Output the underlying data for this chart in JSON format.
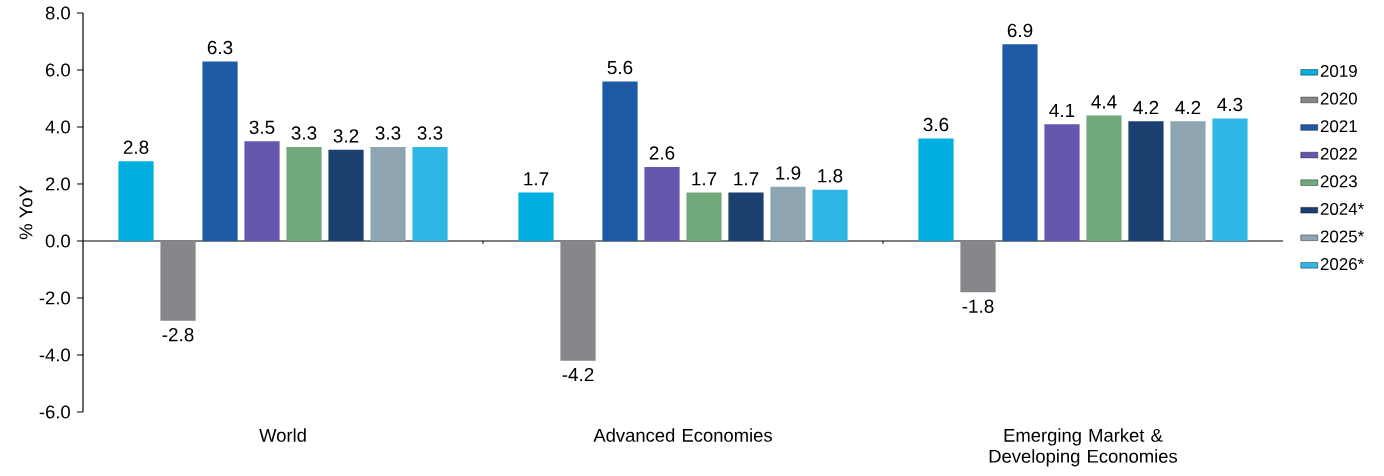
{
  "chart_data": {
    "type": "bar",
    "ylabel": "% YoY",
    "categories": [
      "World",
      "Advanced Economies",
      "Emerging Market & Developing Economies"
    ],
    "series": [
      {
        "name": "2019",
        "color": "#00aee0",
        "values": [
          2.8,
          1.7,
          3.6
        ]
      },
      {
        "name": "2020",
        "color": "#85878a",
        "values": [
          -2.8,
          -4.2,
          -1.8
        ]
      },
      {
        "name": "2021",
        "color": "#1f5aa6",
        "values": [
          6.3,
          5.6,
          6.9
        ]
      },
      {
        "name": "2022",
        "color": "#6557ae",
        "values": [
          3.5,
          2.6,
          4.1
        ]
      },
      {
        "name": "2023",
        "color": "#72a97a",
        "values": [
          3.3,
          1.7,
          4.4
        ]
      },
      {
        "name": "2024*",
        "color": "#1b3f6e",
        "values": [
          3.2,
          1.7,
          4.2
        ]
      },
      {
        "name": "2025*",
        "color": "#8fa6b2",
        "values": [
          3.3,
          1.9,
          4.2
        ]
      },
      {
        "name": "2026*",
        "color": "#2fb6e6",
        "values": [
          3.3,
          1.8,
          4.3
        ]
      }
    ],
    "ylim": [
      -6,
      8
    ],
    "yticks": [
      {
        "value": -6,
        "label": "-6.0"
      },
      {
        "value": -4,
        "label": "-4.0"
      },
      {
        "value": -2,
        "label": "-2.0"
      },
      {
        "value": 0,
        "label": "0.0"
      },
      {
        "value": 2,
        "label": "2.0"
      },
      {
        "value": 4,
        "label": "4.0"
      },
      {
        "value": 6,
        "label": "6.0"
      },
      {
        "value": 8,
        "label": "8.0"
      }
    ],
    "data_labels": true,
    "legend": "right"
  }
}
